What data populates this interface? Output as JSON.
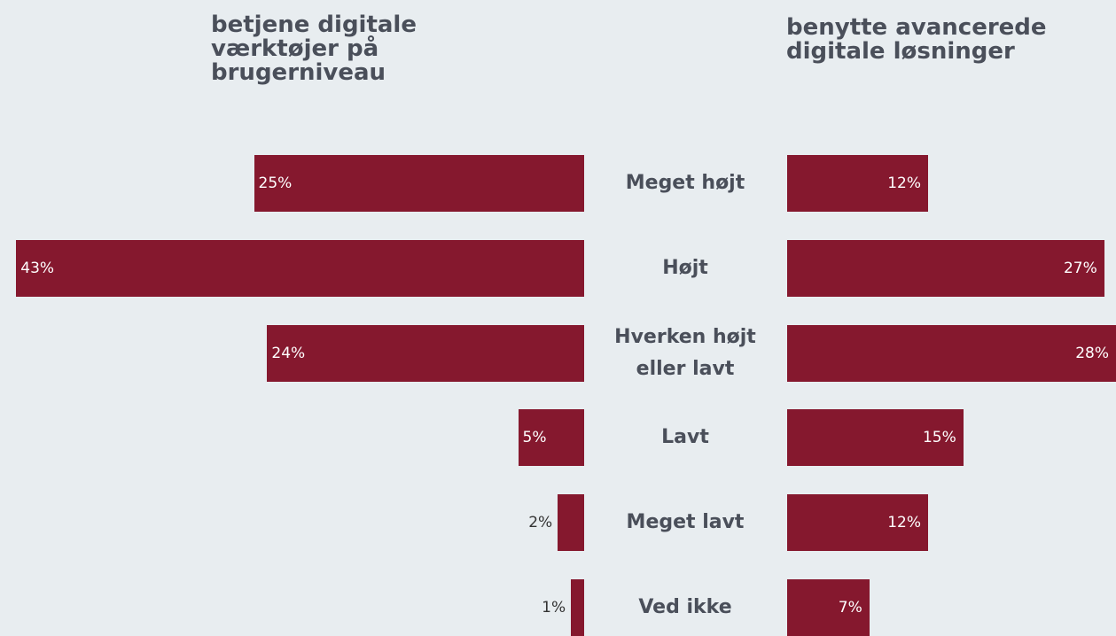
{
  "chart_data": {
    "type": "bar",
    "categories": [
      "Meget højt",
      "Højt",
      "Hverken højt eller lavt",
      "Lavt",
      "Meget lavt",
      "Ved ikke"
    ],
    "series": [
      {
        "name": "betjene digitale værktøjer på brugerniveau",
        "color": "#85182e",
        "values": [
          25,
          43,
          24,
          5,
          2,
          1
        ],
        "value_labels": [
          "25%",
          "43%",
          "24%",
          "5%",
          "2%",
          "1%"
        ]
      },
      {
        "name": "benytte avancerede digitale løsninger",
        "color": "#85182e",
        "values": [
          12,
          27,
          28,
          15,
          12,
          7
        ],
        "value_labels": [
          "12%",
          "27%",
          "28%",
          "15%",
          "12%",
          "7%"
        ]
      }
    ]
  }
}
